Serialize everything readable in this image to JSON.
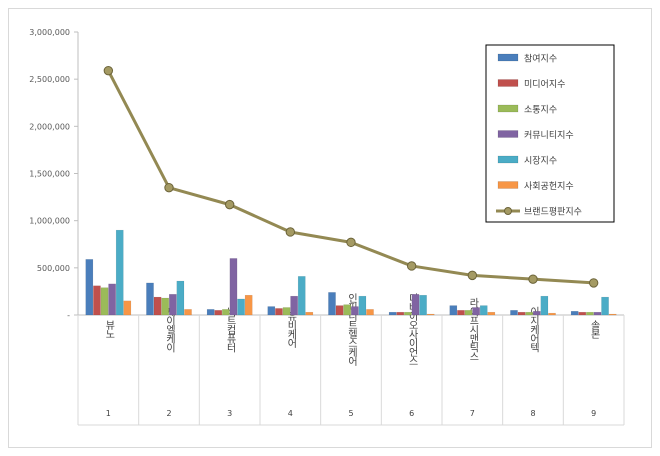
{
  "chart_data": {
    "type": "bar",
    "title": "",
    "xlabel": "",
    "ylabel": "",
    "ylim": [
      0,
      3000000
    ],
    "yticks": [
      0,
      500000,
      1000000,
      1500000,
      2000000,
      2500000,
      3000000
    ],
    "ytick_labels": [
      "-",
      "500,000",
      "1,000,000",
      "1,500,000",
      "2,000,000",
      "2,500,000",
      "3,000,000"
    ],
    "grid": false,
    "legend_position": "top-right",
    "categories": [
      "뷰노",
      "제이엘케이",
      "비트컴퓨터",
      "유비케어",
      "인피니트헬스케어",
      "디바이오사이언스",
      "라이프시맨틱스",
      "이지케어텍",
      "솔본"
    ],
    "category_numbers": [
      "1",
      "2",
      "3",
      "4",
      "5",
      "6",
      "7",
      "8",
      "9"
    ],
    "series": [
      {
        "name": "참여지수",
        "color": "#4a7ebb",
        "values": [
          590000,
          340000,
          60000,
          90000,
          240000,
          30000,
          100000,
          50000,
          40000
        ]
      },
      {
        "name": "미디어지수",
        "color": "#c0504d",
        "values": [
          310000,
          190000,
          50000,
          70000,
          100000,
          30000,
          50000,
          30000,
          30000
        ]
      },
      {
        "name": "소통지수",
        "color": "#9bbb59",
        "values": [
          290000,
          180000,
          60000,
          80000,
          110000,
          30000,
          50000,
          30000,
          30000
        ]
      },
      {
        "name": "커뮤니티지수",
        "color": "#8064a2",
        "values": [
          330000,
          220000,
          600000,
          200000,
          90000,
          220000,
          80000,
          40000,
          30000
        ]
      },
      {
        "name": "시장지수",
        "color": "#4bacc6",
        "values": [
          900000,
          360000,
          170000,
          410000,
          200000,
          210000,
          100000,
          200000,
          190000
        ]
      },
      {
        "name": "사회공헌지수",
        "color": "#f79646",
        "values": [
          150000,
          60000,
          210000,
          30000,
          60000,
          10000,
          30000,
          20000,
          10000
        ]
      }
    ],
    "line_series": {
      "name": "브랜드평판지수",
      "color": "#938953",
      "values": [
        2590000,
        1350000,
        1170000,
        880000,
        770000,
        520000,
        420000,
        380000,
        340000
      ]
    }
  }
}
